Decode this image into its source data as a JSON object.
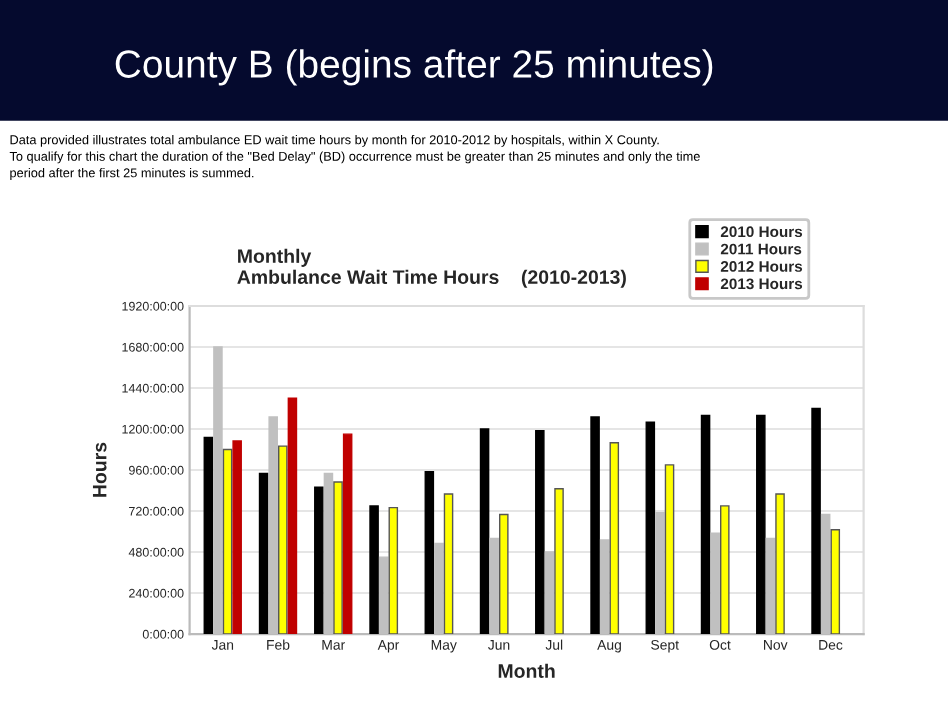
{
  "chart_data": {
    "type": "bar",
    "title": "Monthly\nAmbulance Wait Time Hours    (2010-2013)",
    "xlabel": "Month",
    "ylabel": "Hours",
    "annotations": [
      "County B (begins after 25 minutes)",
      "Data provided illustrates total ambulance ED wait time hours by month for 2010-2012 by hospitals, within X County.\nTo qualify for this chart the duration of the \"Bed Delay\" (BD) occurrence must be greater than 25 minutes and only the time\nperiod after the first 25 minutes is summed."
    ],
    "categories": [
      "Jan",
      "Feb",
      "Mar",
      "Apr",
      "May",
      "Jun",
      "Jul",
      "Aug",
      "Sept",
      "Oct",
      "Nov",
      "Dec"
    ],
    "series": [
      {
        "name": "2010 Hours",
        "color": "#000000",
        "values": [
          1150,
          940,
          860,
          750,
          950,
          1200,
          1190,
          1270,
          1240,
          1280,
          1280,
          1320
        ]
      },
      {
        "name": "2011 Hours",
        "color": "#c0c0c0",
        "values": [
          1680,
          1270,
          940,
          450,
          530,
          560,
          480,
          550,
          710,
          590,
          560,
          700
        ]
      },
      {
        "name": "2012 Hours",
        "color": "#ffff00",
        "values": [
          1080,
          1100,
          890,
          740,
          820,
          700,
          850,
          1120,
          990,
          750,
          820,
          610
        ]
      },
      {
        "name": "2013 Hours",
        "color": "#c00000",
        "values": [
          1130,
          1380,
          1170,
          null,
          null,
          null,
          null,
          null,
          null,
          null,
          null,
          null
        ]
      }
    ],
    "ylim": [
      0,
      1920
    ],
    "yticks": [
      {
        "value": 0,
        "label": "0:00:00"
      },
      {
        "value": 240,
        "label": "240:00:00"
      },
      {
        "value": 480,
        "label": "480:00:00"
      },
      {
        "value": 720,
        "label": "720:00:00"
      },
      {
        "value": 960,
        "label": "960:00:00"
      },
      {
        "value": 1200,
        "label": "1200:00:00"
      },
      {
        "value": 1440,
        "label": "1440:00:00"
      },
      {
        "value": 1680,
        "label": "1680:00:00"
      },
      {
        "value": 1920,
        "label": "1920:00:00"
      }
    ],
    "grid": "y",
    "legend": "top right"
  }
}
